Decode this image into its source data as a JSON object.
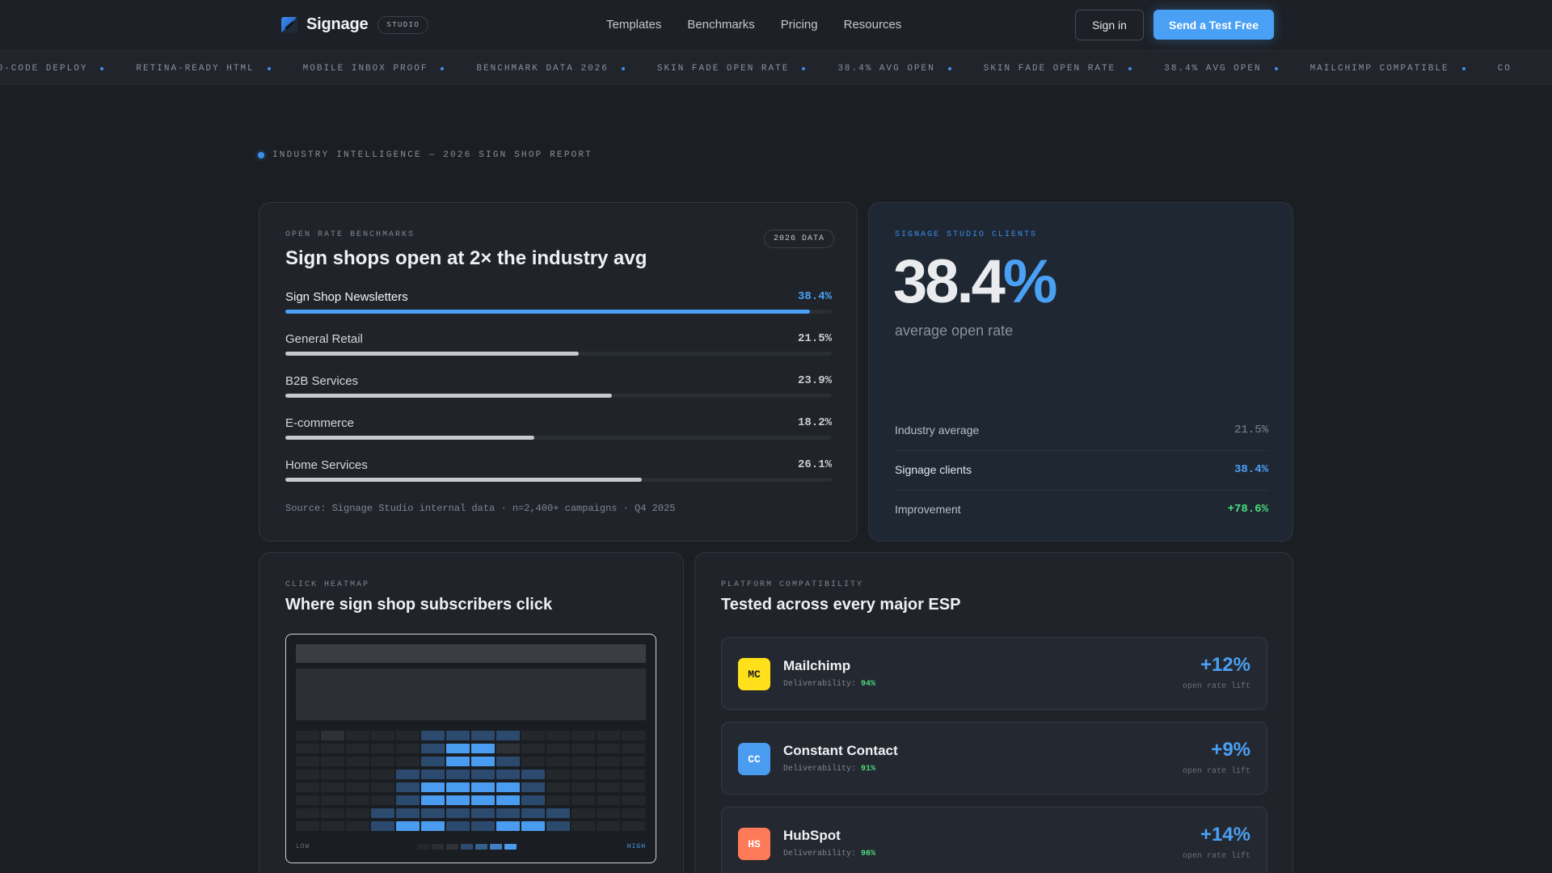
{
  "nav": {
    "brand": "Signage",
    "badge": "STUDIO",
    "links": [
      "Templates",
      "Benchmarks",
      "Pricing",
      "Resources"
    ],
    "signin": "Sign in",
    "cta": "Send a Test Free"
  },
  "ticker": [
    "NO-CODE DEPLOY",
    "RETINA-READY HTML",
    "MOBILE INBOX PROOF",
    "BENCHMARK DATA 2026",
    "SKIN FADE OPEN RATE",
    "38.4% AVG OPEN",
    "SKIN FADE OPEN RATE",
    "38.4% AVG OPEN",
    "MAILCHIMP COMPATIBLE",
    "CO"
  ],
  "eyebrow": "INDUSTRY INTELLIGENCE — 2026 SIGN SHOP REPORT",
  "benchmarks": {
    "label": "OPEN RATE BENCHMARKS",
    "title": "Sign shops open at 2× the industry avg",
    "badge": "2026 DATA",
    "rows": [
      {
        "name": "Sign Shop Newsletters",
        "value": "38.4%",
        "pct": 38.4,
        "highlight": true
      },
      {
        "name": "General Retail",
        "value": "21.5%",
        "pct": 21.5,
        "highlight": false
      },
      {
        "name": "B2B Services",
        "value": "23.9%",
        "pct": 23.9,
        "highlight": false
      },
      {
        "name": "E-commerce",
        "value": "18.2%",
        "pct": 18.2,
        "highlight": false
      },
      {
        "name": "Home Services",
        "value": "26.1%",
        "pct": 26.1,
        "highlight": false
      }
    ],
    "source": "Source: Signage Studio internal data · n=2,400+ campaigns · Q4 2025"
  },
  "clients": {
    "label": "SIGNAGE STUDIO CLIENTS",
    "big_number": "38.4",
    "big_unit": "%",
    "sub": "average open rate",
    "stats": [
      {
        "label": "Industry average",
        "value": "21.5%"
      },
      {
        "label": "Signage clients",
        "value": "38.4%"
      },
      {
        "label": "Improvement",
        "value": "+78.6%"
      }
    ]
  },
  "heatmap": {
    "label": "CLICK HEATMAP",
    "title": "Where sign shop subscribers click",
    "low": "LOW",
    "high": "HIGH",
    "rows": [
      [
        0,
        1,
        0,
        0,
        0,
        2,
        2,
        2,
        2,
        0,
        0,
        0,
        0,
        0
      ],
      [
        0,
        0,
        0,
        0,
        0,
        2,
        3,
        3,
        1,
        0,
        0,
        0,
        0,
        0
      ],
      [
        0,
        0,
        0,
        0,
        0,
        2,
        3,
        3,
        2,
        0,
        0,
        0,
        0,
        0
      ],
      [
        0,
        0,
        0,
        0,
        2,
        2,
        2,
        2,
        2,
        2,
        0,
        0,
        0,
        0
      ],
      [
        0,
        0,
        0,
        0,
        2,
        3,
        3,
        3,
        3,
        2,
        0,
        0,
        0,
        0
      ],
      [
        0,
        0,
        0,
        0,
        2,
        3,
        3,
        3,
        3,
        2,
        0,
        0,
        0,
        0
      ],
      [
        0,
        0,
        0,
        2,
        2,
        2,
        2,
        2,
        2,
        2,
        2,
        0,
        0,
        0
      ],
      [
        0,
        0,
        0,
        2,
        3,
        3,
        2,
        2,
        3,
        3,
        2,
        0,
        0,
        0
      ]
    ],
    "colors": [
      "#24272c",
      "#2e3238",
      "#2c4a6e",
      "#4a9cf0"
    ]
  },
  "platforms": {
    "label": "PLATFORM COMPATIBILITY",
    "title": "Tested across every major ESP",
    "deliv_label": "Deliverability:",
    "lift_label": "open rate lift",
    "items": [
      {
        "abbr": "MC",
        "name": "Mailchimp",
        "deliverability": "94%",
        "lift": "+12%",
        "color": "#ffe01b",
        "text_color": "#1a1a1a"
      },
      {
        "abbr": "CC",
        "name": "Constant Contact",
        "deliverability": "91%",
        "lift": "+9%",
        "color": "#4a9cf0",
        "text_color": "#ffffff"
      },
      {
        "abbr": "HS",
        "name": "HubSpot",
        "deliverability": "96%",
        "lift": "+14%",
        "color": "#ff7a59",
        "text_color": "#ffffff"
      }
    ]
  }
}
